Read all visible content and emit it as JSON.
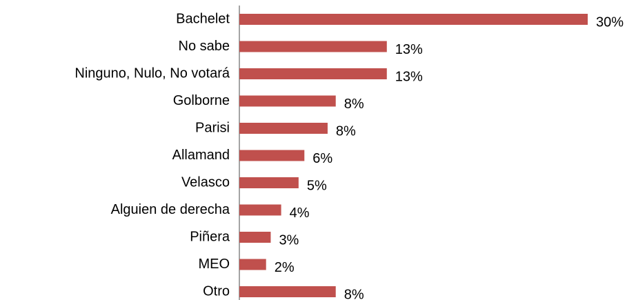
{
  "chart_data": {
    "type": "bar",
    "orientation": "horizontal",
    "categories": [
      "Bachelet",
      "No sabe",
      "Ninguno, Nulo, No votará",
      "Golborne",
      "Parisi",
      "Allamand",
      "Velasco",
      "Alguien de derecha",
      "Piñera",
      "MEO",
      "Otro"
    ],
    "values": [
      30,
      12.7,
      12.7,
      8.3,
      7.6,
      5.6,
      5.1,
      3.6,
      2.7,
      2.3,
      8.3
    ],
    "value_labels": [
      "30%",
      "13%",
      "13%",
      "8%",
      "8%",
      "6%",
      "5%",
      "4%",
      "3%",
      "2%",
      "8%"
    ],
    "color": "#c0504d",
    "xlim": [
      0,
      30
    ]
  }
}
